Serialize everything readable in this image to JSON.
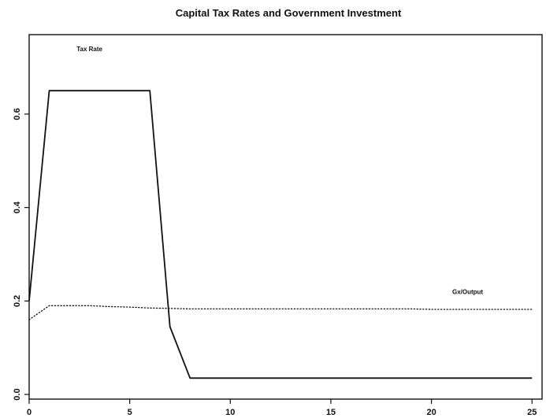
{
  "chart_data": {
    "type": "line",
    "title": "Capital Tax Rates and Government Investment",
    "xlabel": "",
    "ylabel": "",
    "xlim": [
      0,
      25.5
    ],
    "ylim": [
      -0.01,
      0.77
    ],
    "grid": false,
    "legend": "none",
    "x_ticks": [
      0,
      5,
      10,
      15,
      20,
      25
    ],
    "y_ticks": [
      0.0,
      0.2,
      0.4,
      0.6
    ],
    "x_tick_labels": [
      "0",
      "5",
      "10",
      "15",
      "20",
      "25"
    ],
    "y_tick_labels": [
      "0.0",
      "0.2",
      "0.4",
      "0.6"
    ],
    "series": [
      {
        "style": "solid",
        "color": "#111111",
        "x": [
          0,
          1,
          2,
          3,
          4,
          5,
          6,
          7,
          8,
          9,
          10,
          11,
          12,
          13,
          14,
          15,
          16,
          17,
          18,
          19,
          20,
          21,
          22,
          23,
          24,
          25
        ],
        "y": [
          0.2,
          0.65,
          0.65,
          0.65,
          0.65,
          0.65,
          0.65,
          0.145,
          0.035,
          0.035,
          0.035,
          0.035,
          0.035,
          0.035,
          0.035,
          0.035,
          0.035,
          0.035,
          0.035,
          0.035,
          0.035,
          0.035,
          0.035,
          0.035,
          0.035,
          0.035
        ]
      },
      {
        "style": "dotted",
        "color": "#111111",
        "x": [
          0,
          1,
          2,
          3,
          4,
          5,
          6,
          7,
          8,
          9,
          10,
          11,
          12,
          13,
          14,
          15,
          16,
          17,
          18,
          19,
          20,
          21,
          22,
          23,
          24,
          25
        ],
        "y": [
          0.16,
          0.19,
          0.19,
          0.19,
          0.188,
          0.187,
          0.185,
          0.184,
          0.183,
          0.183,
          0.183,
          0.183,
          0.183,
          0.183,
          0.183,
          0.183,
          0.183,
          0.183,
          0.183,
          0.183,
          0.182,
          0.182,
          0.182,
          0.182,
          0.182,
          0.182
        ]
      }
    ],
    "annotations": [
      {
        "text": "Tax Rate",
        "x": 3.0,
        "y": 0.735
      },
      {
        "text": "Gx/Output",
        "x": 21.8,
        "y": 0.215
      }
    ]
  }
}
